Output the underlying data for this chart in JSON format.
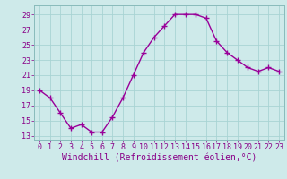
{
  "x": [
    0,
    1,
    2,
    3,
    4,
    5,
    6,
    7,
    8,
    9,
    10,
    11,
    12,
    13,
    14,
    15,
    16,
    17,
    18,
    19,
    20,
    21,
    22,
    23
  ],
  "y": [
    19,
    18,
    16,
    14,
    14.5,
    13.5,
    13.5,
    15.5,
    18,
    21,
    24,
    26,
    27.5,
    29,
    29,
    29,
    28.5,
    25.5,
    24,
    23,
    22,
    21.5,
    22,
    21.5
  ],
  "line_color": "#990099",
  "marker": "+",
  "marker_size": 4,
  "bg_color": "#ceeaea",
  "grid_color": "#a8d4d4",
  "xlabel": "Windchill (Refroidissement éolien,°C)",
  "xlabel_fontsize": 7,
  "yticks": [
    13,
    15,
    17,
    19,
    21,
    23,
    25,
    27,
    29
  ],
  "xticks": [
    0,
    1,
    2,
    3,
    4,
    5,
    6,
    7,
    8,
    9,
    10,
    11,
    12,
    13,
    14,
    15,
    16,
    17,
    18,
    19,
    20,
    21,
    22,
    23
  ],
  "ylim": [
    12.5,
    30.2
  ],
  "xlim": [
    -0.5,
    23.5
  ],
  "tick_fontsize": 6,
  "line_width": 1.0
}
